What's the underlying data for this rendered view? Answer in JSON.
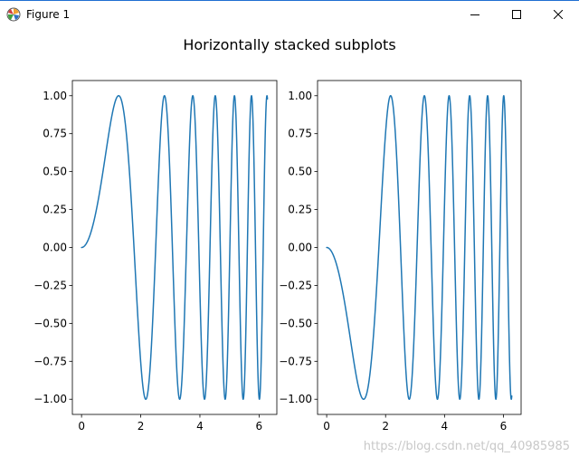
{
  "window": {
    "title": "Figure 1",
    "icons": [
      "matplotlib-icon",
      "minimize-icon",
      "maximize-icon",
      "close-icon"
    ]
  },
  "figure": {
    "suptitle": "Horizontally stacked subplots"
  },
  "watermark": "https://blog.csdn.net/qq_40985985",
  "colors": {
    "line": "#1f77b4",
    "axes": "#000000",
    "text": "#000000"
  },
  "chart_data": [
    {
      "type": "line",
      "title": "",
      "xlabel": "",
      "ylabel": "",
      "function": "sin(x^2)",
      "x_range": [
        0,
        6.283
      ],
      "xlim": [
        -0.31,
        6.6
      ],
      "ylim": [
        -1.1,
        1.1
      ],
      "xticks": [
        0,
        2,
        4,
        6
      ],
      "xtick_labels": [
        "0",
        "2",
        "4",
        "6"
      ],
      "yticks": [
        1.0,
        0.75,
        0.5,
        0.25,
        0.0,
        -0.25,
        -0.5,
        -0.75,
        -1.0
      ],
      "ytick_labels": [
        "1.00",
        "0.75",
        "0.50",
        "0.25",
        "0.00",
        "−0.25",
        "−0.50",
        "−0.75",
        "−1.00"
      ],
      "grid": false,
      "series": [
        {
          "color": "#1f77b4"
        }
      ]
    },
    {
      "type": "line",
      "title": "",
      "xlabel": "",
      "ylabel": "",
      "function": "-sin(x^2)",
      "x_range": [
        0,
        6.283
      ],
      "xlim": [
        -0.31,
        6.6
      ],
      "ylim": [
        -1.1,
        1.1
      ],
      "xticks": [
        0,
        2,
        4,
        6
      ],
      "xtick_labels": [
        "0",
        "2",
        "4",
        "6"
      ],
      "yticks": [
        1.0,
        0.75,
        0.5,
        0.25,
        0.0,
        -0.25,
        -0.5,
        -0.75,
        -1.0
      ],
      "ytick_labels": [
        "1.00",
        "0.75",
        "0.50",
        "0.25",
        "0.00",
        "−0.25",
        "−0.50",
        "−0.75",
        "−1.00"
      ],
      "grid": false,
      "series": [
        {
          "color": "#1f77b4"
        }
      ]
    }
  ]
}
